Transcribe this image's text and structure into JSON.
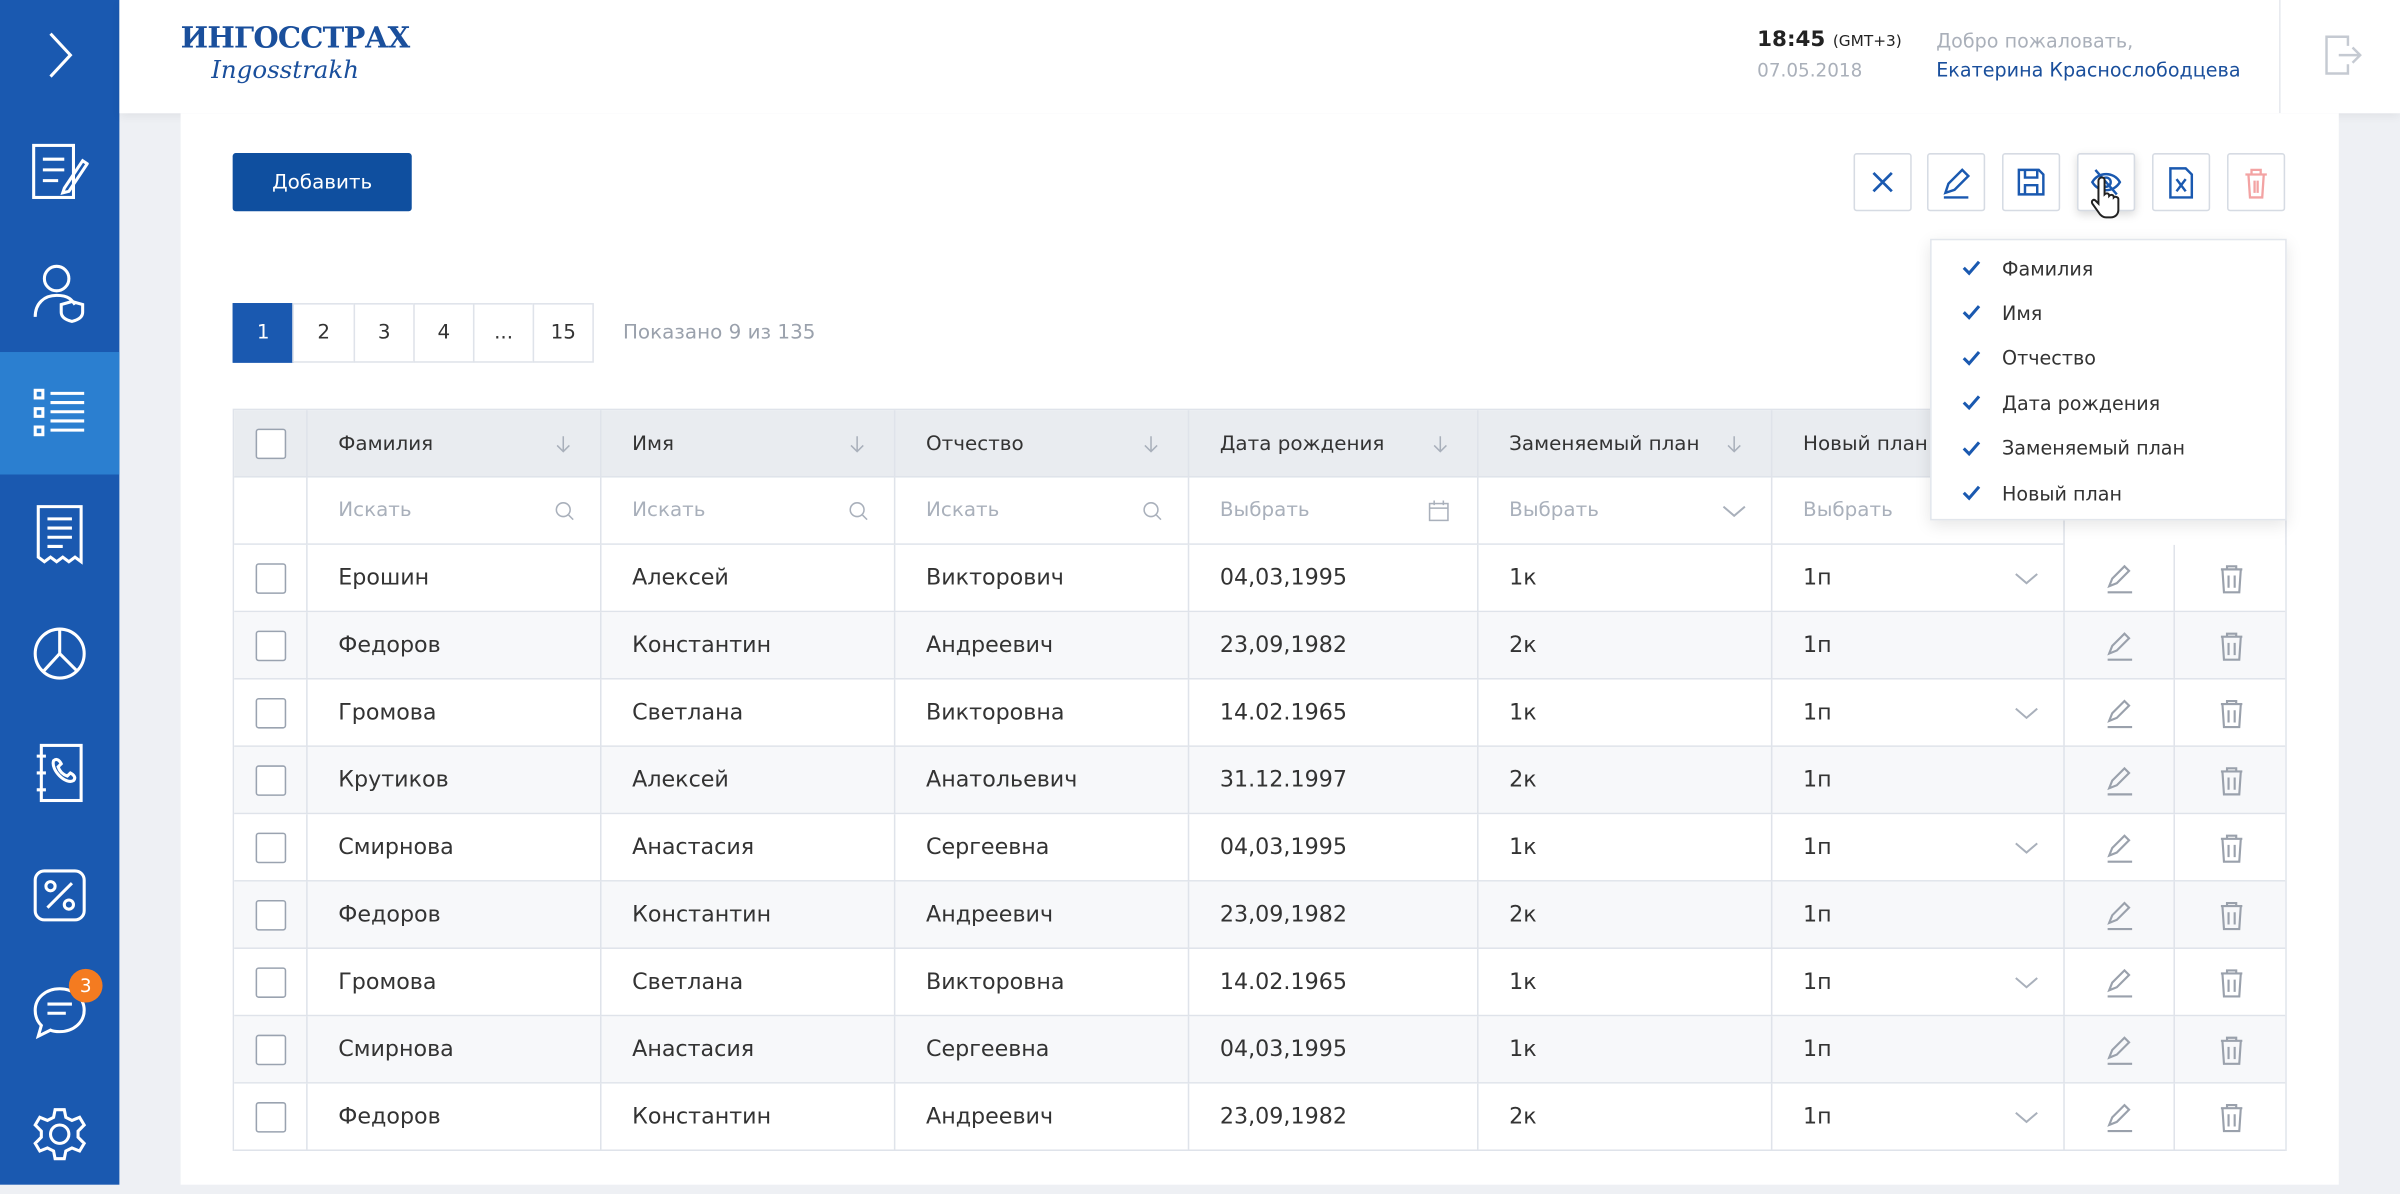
{
  "header": {
    "logo_ru": "ИНГОССТРАХ",
    "logo_en": "Ingosstrakh",
    "time": "18:45",
    "timezone": "(GMT+3)",
    "date": "07.05.2018",
    "welcome": "Добро пожаловать,",
    "user": "Екатерина Краснослободцева"
  },
  "sidebar": {
    "badge": "3"
  },
  "toolbar": {
    "add_button": "Добавить"
  },
  "pagination": {
    "pages": [
      "1",
      "2",
      "3",
      "4",
      "...",
      "15"
    ],
    "summary": "Показано 9 из 135"
  },
  "table": {
    "columns": [
      "Фамилия",
      "Имя",
      "Отчество",
      "Дата рождения",
      "Заменяемый план",
      "Новый план"
    ],
    "filters": [
      "Искать",
      "Искать",
      "Искать",
      "Выбрать",
      "Выбрать",
      "Выбрать"
    ],
    "rows": [
      [
        "Ерошин",
        "Алексей",
        "Викторович",
        "04,03,1995",
        "1к",
        "1п"
      ],
      [
        "Федоров",
        "Константин",
        "Андреевич",
        "23,09,1982",
        "2к",
        "1п"
      ],
      [
        "Громова",
        "Светлана",
        "Викторовна",
        "14.02.1965",
        "1к",
        "1п"
      ],
      [
        "Крутиков",
        "Алексей",
        "Анатольевич",
        "31.12.1997",
        "2к",
        "1п"
      ],
      [
        "Смирнова",
        "Анастасия",
        "Сергеевна",
        "04,03,1995",
        "1к",
        "1п"
      ],
      [
        "Федоров",
        "Константин",
        "Андреевич",
        "23,09,1982",
        "2к",
        "1п"
      ],
      [
        "Громова",
        "Светлана",
        "Викторовна",
        "14.02.1965",
        "1к",
        "1п"
      ],
      [
        "Смирнова",
        "Анастасия",
        "Сергеевна",
        "04,03,1995",
        "1к",
        "1п"
      ],
      [
        "Федоров",
        "Константин",
        "Андреевич",
        "23,09,1982",
        "2к",
        "1п"
      ]
    ]
  },
  "column_menu": {
    "items": [
      "Фамилия",
      "Имя",
      "Отчество",
      "Дата рождения",
      "Заменяемый план",
      "Новый план"
    ]
  }
}
